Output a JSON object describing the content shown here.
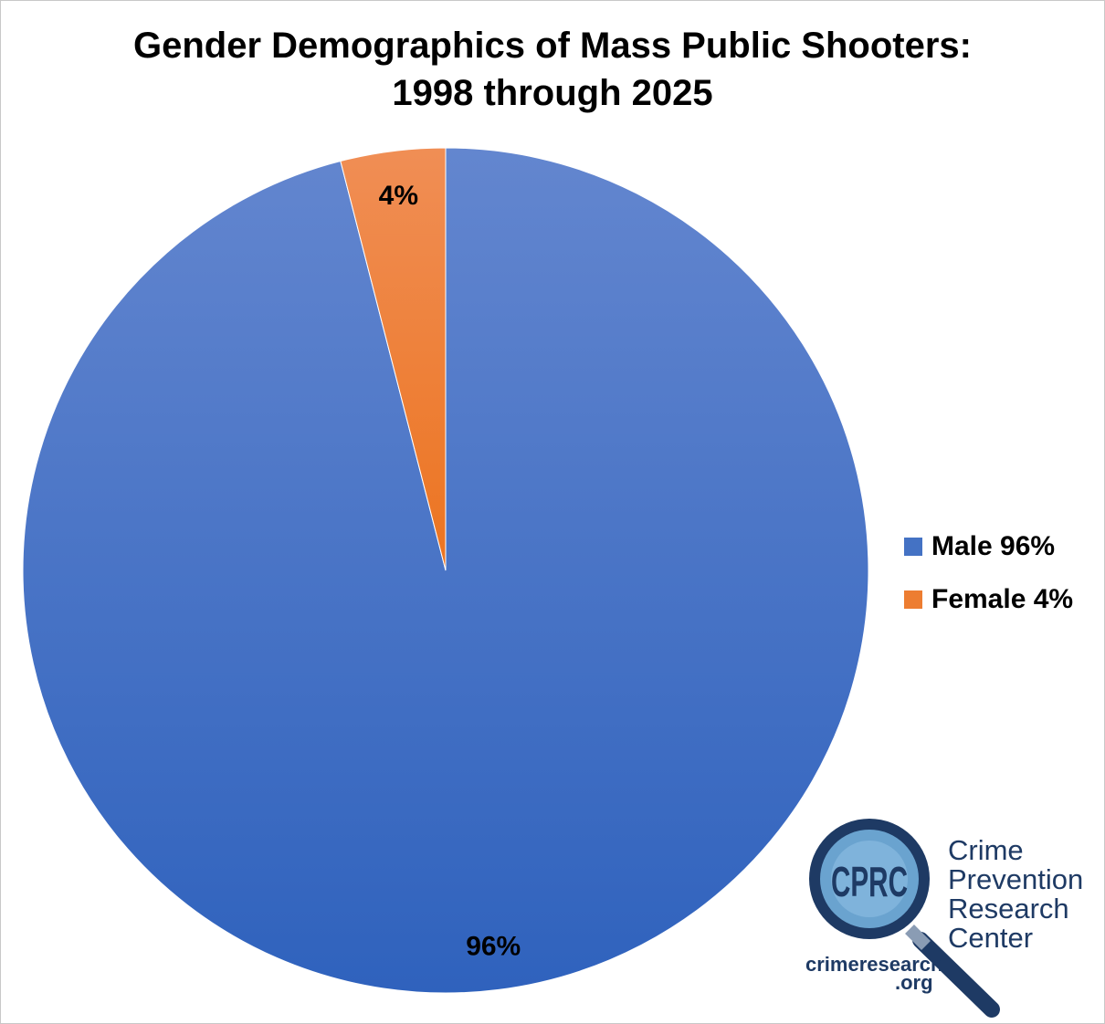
{
  "chart_data": {
    "type": "pie",
    "title": [
      "Gender Demographics of Mass Public Shooters:",
      "1998 through 2025"
    ],
    "slices": [
      {
        "name": "Male",
        "value": 96,
        "label": "96%",
        "legend": "Male 96%",
        "color": "#4472c4"
      },
      {
        "name": "Female",
        "value": 4,
        "label": "4%",
        "legend": "Female 4%",
        "color": "#ed7d31"
      }
    ],
    "legend_position": "right"
  },
  "logo": {
    "badge": "CPRC",
    "name_lines": [
      "Crime",
      "Prevention",
      "Research",
      "Center"
    ],
    "url_lines": [
      "crimeresearch",
      ".org"
    ],
    "color": "#1e3a64"
  }
}
